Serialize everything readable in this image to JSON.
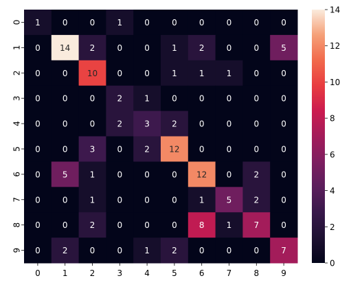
{
  "chart_data": {
    "type": "heatmap",
    "x_categories": [
      "0",
      "1",
      "2",
      "3",
      "4",
      "5",
      "6",
      "7",
      "8",
      "9"
    ],
    "y_categories": [
      "0",
      "1",
      "2",
      "3",
      "4",
      "5",
      "6",
      "7",
      "8",
      "9"
    ],
    "values": [
      [
        1,
        0,
        0,
        1,
        0,
        0,
        0,
        0,
        0,
        0
      ],
      [
        0,
        14,
        2,
        0,
        0,
        1,
        2,
        0,
        0,
        5
      ],
      [
        0,
        0,
        10,
        0,
        0,
        1,
        1,
        1,
        0,
        0
      ],
      [
        0,
        0,
        0,
        2,
        1,
        0,
        0,
        0,
        0,
        0
      ],
      [
        0,
        0,
        0,
        2,
        3,
        2,
        0,
        0,
        0,
        0
      ],
      [
        0,
        0,
        3,
        0,
        2,
        12,
        0,
        0,
        0,
        0
      ],
      [
        0,
        5,
        1,
        0,
        0,
        0,
        12,
        0,
        2,
        0
      ],
      [
        0,
        0,
        1,
        0,
        0,
        0,
        1,
        5,
        2,
        0
      ],
      [
        0,
        0,
        2,
        0,
        0,
        0,
        8,
        1,
        7,
        0
      ],
      [
        0,
        2,
        0,
        0,
        1,
        2,
        0,
        0,
        0,
        7
      ]
    ],
    "vmin": 0,
    "vmax": 14,
    "colorbar_ticks": [
      0,
      2,
      4,
      6,
      8,
      10,
      12,
      14
    ],
    "colormap": "rocket",
    "annotations": true,
    "title": "",
    "xlabel": "",
    "ylabel": "",
    "grid": false,
    "legend": "colorbar-right"
  }
}
